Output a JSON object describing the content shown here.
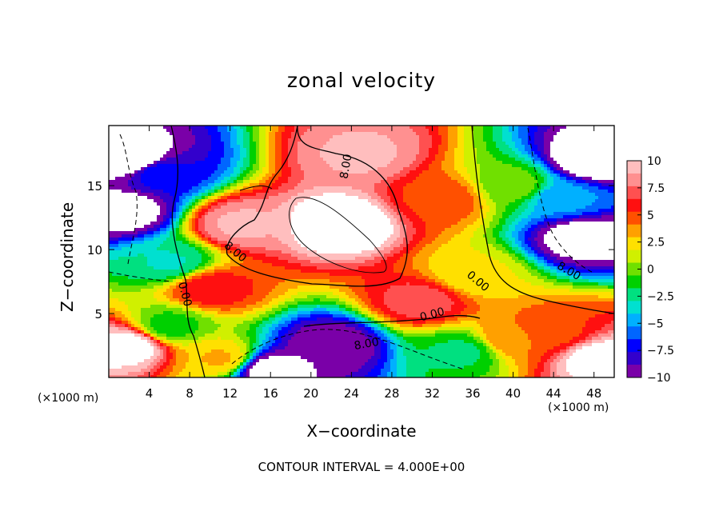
{
  "chart_data": {
    "type": "heatmap",
    "title": "zonal velocity",
    "xlabel": "X−coordinate",
    "ylabel": "Z−coordinate",
    "x_unit_label": "(×1000 m)",
    "footnote": "CONTOUR INTERVAL = 4.000E+00",
    "xlim": [
      0,
      50
    ],
    "ylim": [
      0,
      19.7
    ],
    "x_ticks": [
      "4",
      "8",
      "12",
      "16",
      "20",
      "24",
      "28",
      "32",
      "36",
      "40",
      "44",
      "48"
    ],
    "y_ticks": [
      "5",
      "10",
      "15"
    ],
    "colorbar": {
      "range": [
        -10,
        10
      ],
      "ticks": [
        "10",
        "7.5",
        "5",
        "2.5",
        "0",
        "−2.5",
        "−5",
        "−7.5",
        "−10"
      ],
      "colors": [
        "#7a00a8",
        "#3300cc",
        "#0000ff",
        "#0066ff",
        "#00b0ff",
        "#00e0d0",
        "#00e080",
        "#00d000",
        "#70e000",
        "#d0f000",
        "#ffe000",
        "#ffa000",
        "#ff5000",
        "#ff1010",
        "#ff5050",
        "#ff9090",
        "#ffbebe"
      ]
    },
    "contour_labels": [
      "8.00",
      "8.00",
      "0.00",
      "0.00",
      "0.00",
      "8.00",
      "8.00"
    ],
    "features": [
      {
        "x": 23,
        "z": 12,
        "value": 12
      },
      {
        "x": 25,
        "z": 17.5,
        "value": 9
      },
      {
        "x": 13,
        "z": 12,
        "value": 9
      },
      {
        "x": 10,
        "z": 7,
        "value": 6
      },
      {
        "x": 31,
        "z": 6,
        "value": 7
      },
      {
        "x": 33,
        "z": 14,
        "value": 5
      },
      {
        "x": 36,
        "z": 8,
        "value": 2
      },
      {
        "x": 6,
        "z": 9,
        "value": -3
      },
      {
        "x": 40,
        "z": 15,
        "value": 0
      },
      {
        "x": 45,
        "z": 14,
        "value": -5
      },
      {
        "x": 2.5,
        "z": 17,
        "value": -12
      },
      {
        "x": 1.5,
        "z": 13,
        "value": -11
      },
      {
        "x": 48,
        "z": 17,
        "value": -12
      },
      {
        "x": 47,
        "z": 11,
        "value": -11
      },
      {
        "x": 5,
        "z": 16,
        "value": -7
      },
      {
        "x": 22,
        "z": 2.5,
        "value": -10
      },
      {
        "x": 16,
        "z": 0.6,
        "value": -11
      },
      {
        "x": 2,
        "z": 2.5,
        "value": 11
      },
      {
        "x": 11,
        "z": 1.5,
        "value": 3
      },
      {
        "x": 44,
        "z": 3.5,
        "value": 5
      },
      {
        "x": 48.5,
        "z": 1.5,
        "value": 11
      },
      {
        "x": 40,
        "z": 3,
        "value": 4
      },
      {
        "x": 35,
        "z": 2,
        "value": -2
      },
      {
        "x": 6,
        "z": 4,
        "value": -1
      }
    ]
  }
}
